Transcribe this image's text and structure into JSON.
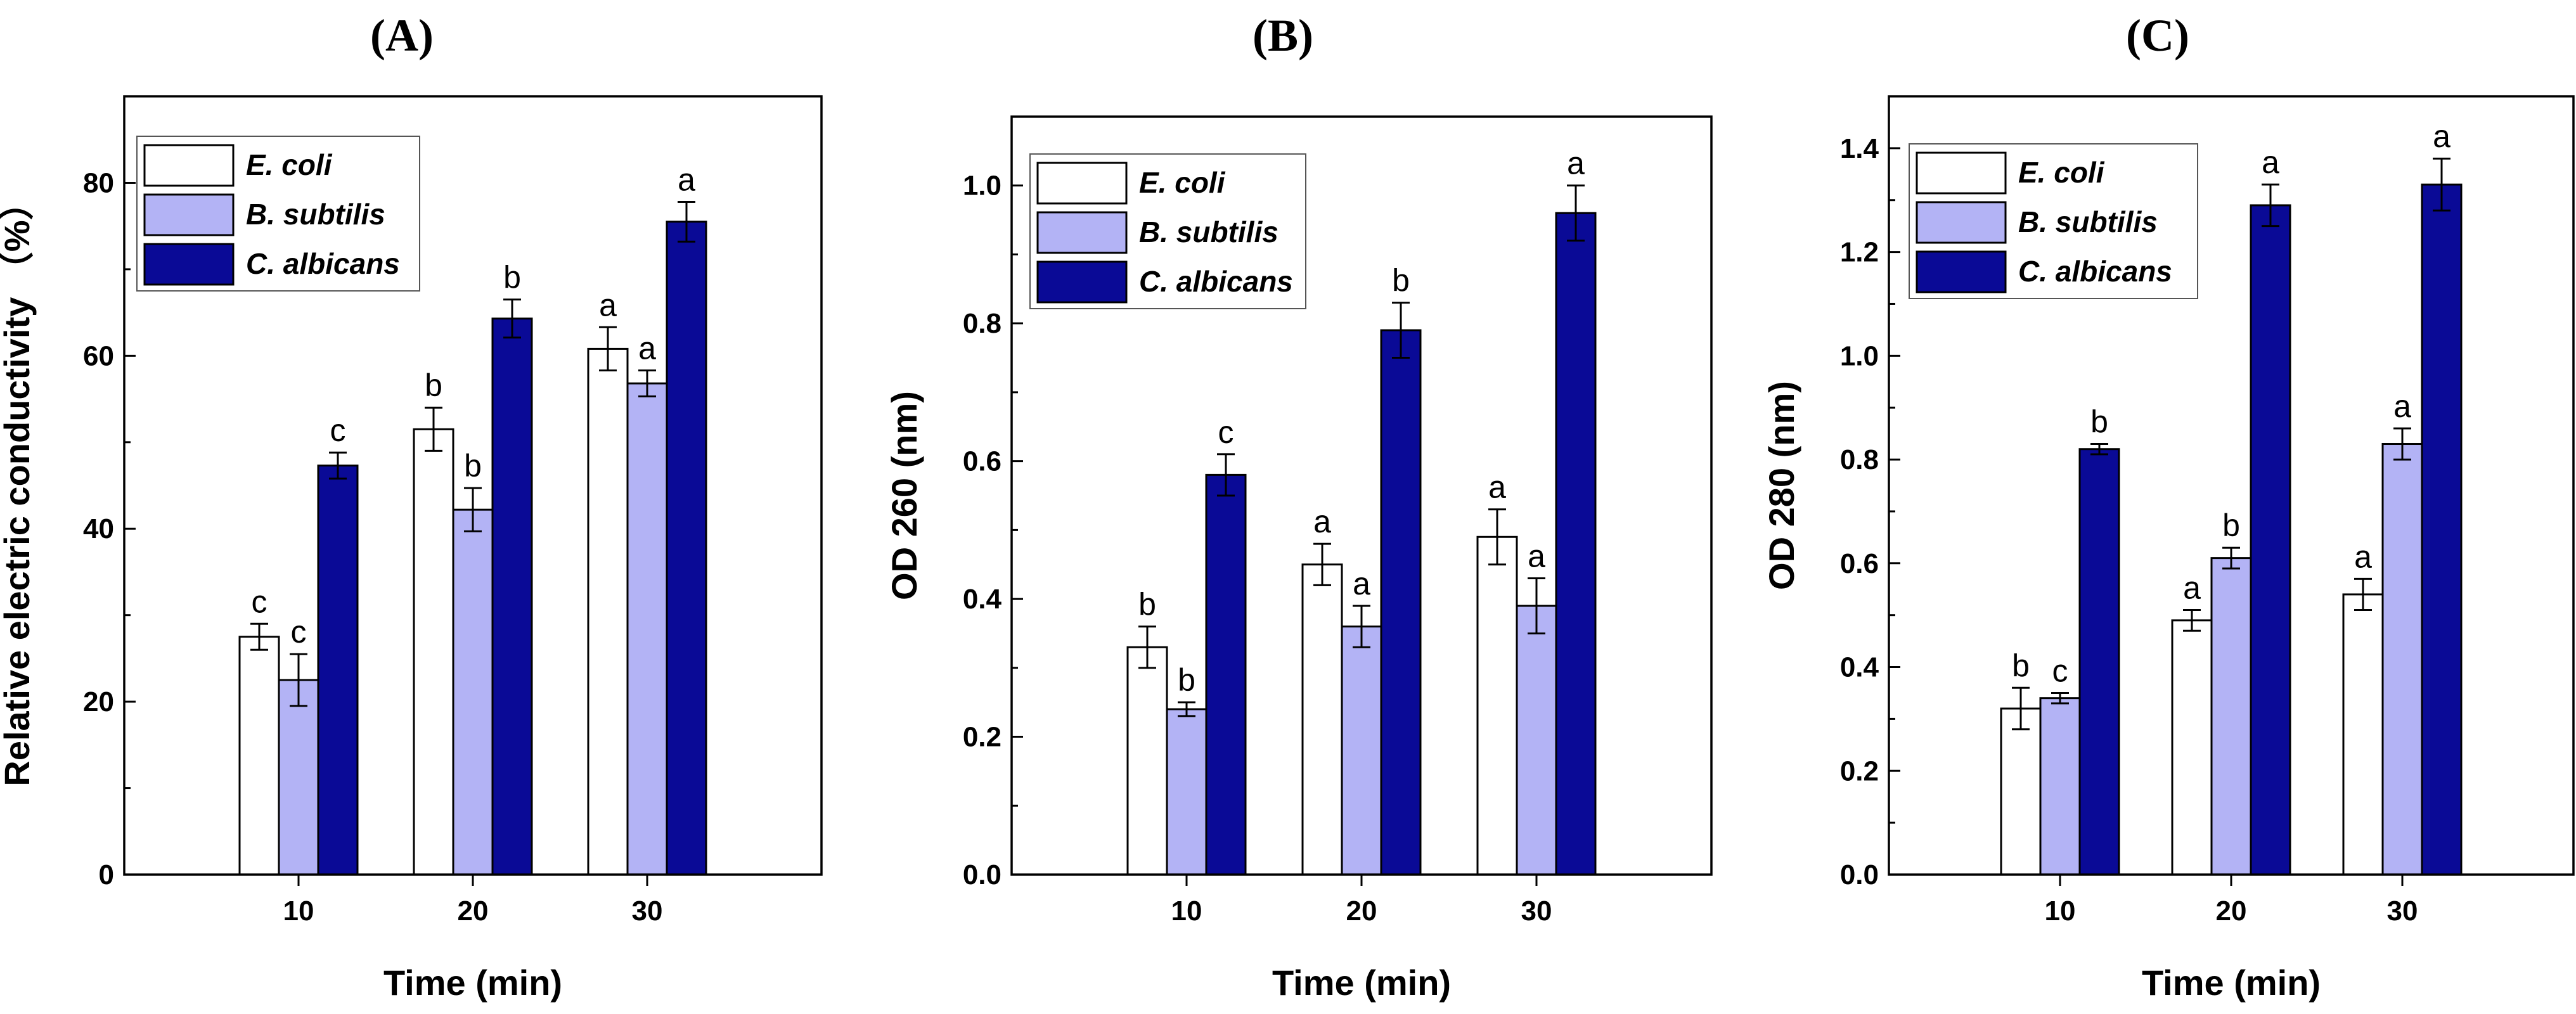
{
  "colors": {
    "series": [
      "#ffffff",
      "#b3b3f5",
      "#0a0a96"
    ],
    "stroke": "#000000"
  },
  "chart_data": [
    {
      "type": "bar",
      "panel_label": "(A)",
      "xlabel": "Time (min)",
      "ylabel": "Relative electric conductivity （%）",
      "categories": [
        "10",
        "20",
        "30"
      ],
      "ylim": [
        0,
        90
      ],
      "yticks": [
        0,
        20,
        40,
        60,
        80
      ],
      "yticklabels": [
        "0",
        "20",
        "40",
        "60",
        "80"
      ],
      "legend": "top-left",
      "grid": false,
      "series": [
        {
          "name": "E. coli",
          "values": [
            27.5,
            51.5,
            60.8
          ],
          "errors": [
            1.5,
            2.5,
            2.5
          ],
          "labels": [
            "c",
            "b",
            "a"
          ]
        },
        {
          "name": "B. subtilis",
          "values": [
            22.5,
            42.2,
            56.8
          ],
          "errors": [
            3.0,
            2.5,
            1.5
          ],
          "labels": [
            "c",
            "b",
            "a"
          ]
        },
        {
          "name": "C. albicans",
          "values": [
            47.3,
            64.3,
            75.5
          ],
          "errors": [
            1.5,
            2.2,
            2.3
          ],
          "labels": [
            "c",
            "b",
            "a"
          ]
        }
      ]
    },
    {
      "type": "bar",
      "panel_label": "(B)",
      "xlabel": "Time (min)",
      "ylabel": "OD 260 (nm)",
      "categories": [
        "10",
        "20",
        "30"
      ],
      "ylim": [
        0,
        1.1
      ],
      "yticks": [
        0,
        0.2,
        0.4,
        0.6,
        0.8,
        1.0
      ],
      "yticklabels": [
        "0.0",
        "0.2",
        "0.4",
        "0.6",
        "0.8",
        "1.0"
      ],
      "legend": "top-left",
      "grid": false,
      "series": [
        {
          "name": "E. coli",
          "values": [
            0.33,
            0.45,
            0.49
          ],
          "errors": [
            0.03,
            0.03,
            0.04
          ],
          "labels": [
            "b",
            "a",
            "a"
          ]
        },
        {
          "name": "B. subtilis",
          "values": [
            0.24,
            0.36,
            0.39
          ],
          "errors": [
            0.01,
            0.03,
            0.04
          ],
          "labels": [
            "b",
            "a",
            "a"
          ]
        },
        {
          "name": "C. albicans",
          "values": [
            0.58,
            0.79,
            0.96
          ],
          "errors": [
            0.03,
            0.04,
            0.04
          ],
          "labels": [
            "c",
            "b",
            "a"
          ]
        }
      ]
    },
    {
      "type": "bar",
      "panel_label": "(C)",
      "xlabel": "Time (min)",
      "ylabel": "OD 280 (nm)",
      "categories": [
        "10",
        "20",
        "30"
      ],
      "ylim": [
        0,
        1.5
      ],
      "yticks": [
        0,
        0.2,
        0.4,
        0.6,
        0.8,
        1.0,
        1.2,
        1.4
      ],
      "yticklabels": [
        "0.0",
        "0.2",
        "0.4",
        "0.6",
        "0.8",
        "1.0",
        "1.2",
        "1.4"
      ],
      "legend": "top-left",
      "grid": false,
      "series": [
        {
          "name": "E. coli",
          "values": [
            0.32,
            0.49,
            0.54
          ],
          "errors": [
            0.04,
            0.02,
            0.03
          ],
          "labels": [
            "b",
            "a",
            "a"
          ]
        },
        {
          "name": "B. subtilis",
          "values": [
            0.34,
            0.61,
            0.83
          ],
          "errors": [
            0.01,
            0.02,
            0.03
          ],
          "labels": [
            "c",
            "b",
            "a"
          ]
        },
        {
          "name": "C. albicans",
          "values": [
            0.82,
            1.29,
            1.33
          ],
          "errors": [
            0.01,
            0.04,
            0.05
          ],
          "labels": [
            "b",
            "a",
            "a"
          ]
        }
      ]
    }
  ]
}
